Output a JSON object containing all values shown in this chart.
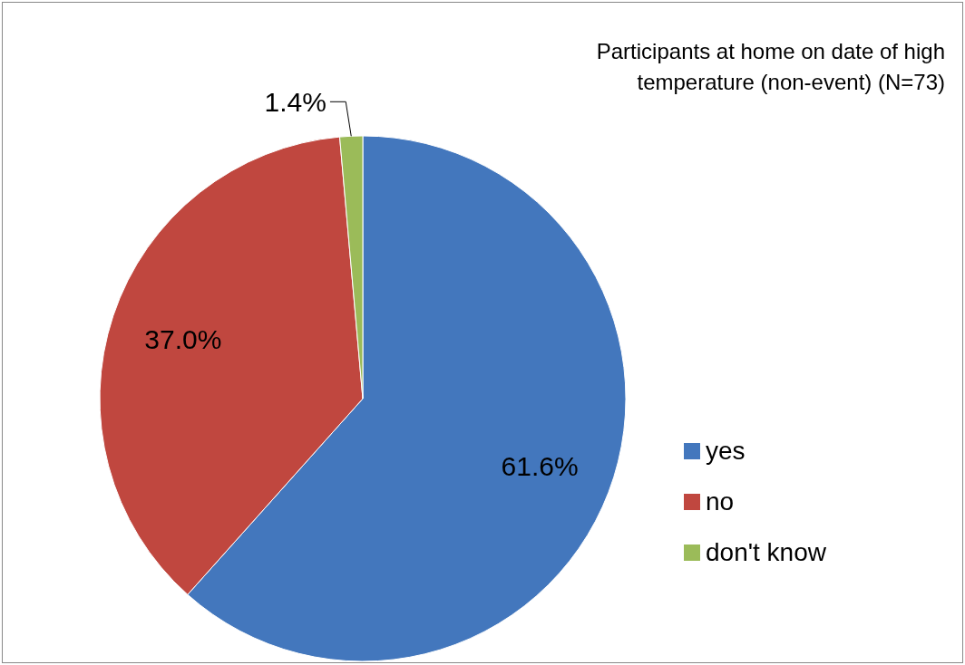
{
  "chart_data": {
    "type": "pie",
    "title": "Participants at home on date of high temperature (non-event) (N=73)",
    "categories": [
      "yes",
      "no",
      "don't know"
    ],
    "values": [
      61.6,
      37.0,
      1.4
    ],
    "colors": [
      "#4377bd",
      "#c0473f",
      "#9bbb59"
    ],
    "value_labels": [
      "61.6%",
      "37.0%",
      "1.4%"
    ],
    "legend": "right"
  }
}
